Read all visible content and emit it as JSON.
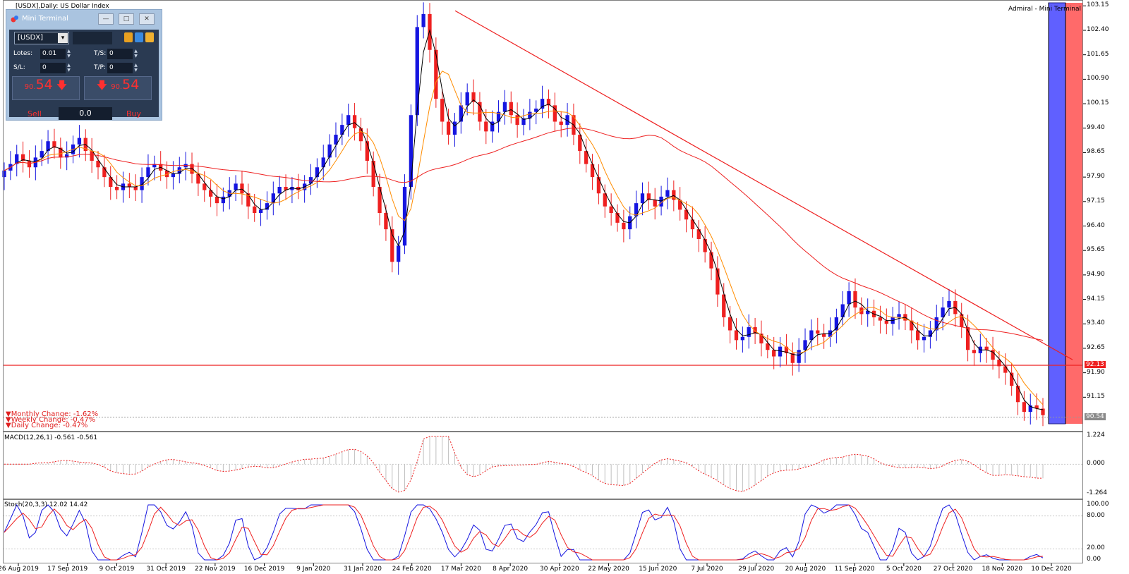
{
  "window": {
    "title": "[USDX],Daily: US Dollar Index",
    "broker": "Admiral - Mini Terminal"
  },
  "mini_terminal": {
    "title": "Mini Terminal",
    "symbol": "[USDX]",
    "lots_label": "Lotes:",
    "lots_value": "0.01",
    "ts_label": "T/S:",
    "ts_value": "0",
    "sl_label": "S/L:",
    "sl_value": "0",
    "tp_label": "T/P:",
    "tp_value": "0",
    "sell_price_small": "90.",
    "sell_price_big": "54",
    "buy_price_small": "90.",
    "buy_price_big": "54",
    "sell_label": "Sell",
    "buy_label": "Buy",
    "volume_value": "0.0",
    "minimize_icon": "minimize-icon",
    "restore_icon": "restore-icon",
    "close_icon": "close-icon"
  },
  "changes": {
    "monthly": "Monthly Change: -1.62%",
    "weekly": "Weekly Change: -0.47%",
    "daily": "Daily Change: -0.47%"
  },
  "indicators": {
    "macd_label": "MACD(12,26,1) -0.561 -0.561",
    "stoch_label": "Stoch(20,3,3) 12.02 14.42"
  },
  "colors": {
    "bull": "#1515e0",
    "bear": "#ee2020",
    "ma_fast": "#000000",
    "ma_mid": "#ff8c00",
    "ma_slow": "#ee2020",
    "trendline": "#ee2020",
    "blue_zone": "#6060ff",
    "red_zone": "#ff6a6a"
  },
  "chart_data": [
    {
      "type": "candlestick",
      "name": "USDX Daily",
      "ylim": [
        90.4,
        103.2
      ],
      "y_ticks": [
        "103.15",
        "102.40",
        "101.65",
        "100.90",
        "100.15",
        "99.40",
        "98.65",
        "97.90",
        "97.15",
        "96.40",
        "95.65",
        "94.90",
        "94.15",
        "93.40",
        "92.65",
        "91.90",
        "91.15"
      ],
      "x_ticks": [
        "26 Aug 2019",
        "17 Sep 2019",
        "9 Oct 2019",
        "31 Oct 2019",
        "22 Nov 2019",
        "16 Dec 2019",
        "9 Jan 2020",
        "31 Jan 2020",
        "24 Feb 2020",
        "17 Mar 2020",
        "8 Apr 2020",
        "30 Apr 2020",
        "22 May 2020",
        "15 Jun 2020",
        "7 Jul 2020",
        "29 Jul 2020",
        "20 Aug 2020",
        "11 Sep 2020",
        "5 Oct 2020",
        "27 Oct 2020",
        "18 Nov 2020",
        "10 Dec 2020"
      ],
      "close_series": [
        98.1,
        98.3,
        98.6,
        98.4,
        98.2,
        98.5,
        98.7,
        99.0,
        98.8,
        98.5,
        98.6,
        98.9,
        99.1,
        98.7,
        98.4,
        98.2,
        97.9,
        97.6,
        97.5,
        97.7,
        97.6,
        97.5,
        97.9,
        98.2,
        98.3,
        98.1,
        97.9,
        98.0,
        98.2,
        98.3,
        98.0,
        97.7,
        97.5,
        97.3,
        97.1,
        97.3,
        97.5,
        97.7,
        97.4,
        97.0,
        96.8,
        96.9,
        97.1,
        97.4,
        97.6,
        97.5,
        97.6,
        97.5,
        97.7,
        97.9,
        98.2,
        98.5,
        98.9,
        99.2,
        99.5,
        99.8,
        99.4,
        99.0,
        98.4,
        97.6,
        96.8,
        96.3,
        95.3,
        95.8,
        97.6,
        99.8,
        102.5,
        102.9,
        101.8,
        100.3,
        99.6,
        99.2,
        99.6,
        100.1,
        100.5,
        100.2,
        99.6,
        99.3,
        99.6,
        99.9,
        100.2,
        99.8,
        99.5,
        99.7,
        99.9,
        100.0,
        100.3,
        100.1,
        99.6,
        99.5,
        99.8,
        99.2,
        98.7,
        98.3,
        97.9,
        97.4,
        97.0,
        96.8,
        96.5,
        96.3,
        96.7,
        97.1,
        97.4,
        97.2,
        97.0,
        97.3,
        97.5,
        97.2,
        96.9,
        96.6,
        96.3,
        96.0,
        95.6,
        95.1,
        94.3,
        93.6,
        93.2,
        92.9,
        93.0,
        93.3,
        93.1,
        92.8,
        92.6,
        92.4,
        92.7,
        92.5,
        92.2,
        92.6,
        92.9,
        93.2,
        93.1,
        93.0,
        93.2,
        93.6,
        94.0,
        94.4,
        93.9,
        93.7,
        93.8,
        93.6,
        93.5,
        93.4,
        93.6,
        93.7,
        93.5,
        93.2,
        92.9,
        93.0,
        93.2,
        93.6,
        93.9,
        94.1,
        93.7,
        93.3,
        92.6,
        92.5,
        92.7,
        92.6,
        92.3,
        92.1,
        91.9,
        91.5,
        91.0,
        90.7,
        90.9,
        90.8,
        90.6
      ],
      "horizontal_level": 92.13,
      "current_price": 90.54,
      "overlays": [
        "ma_fast (black)",
        "ma_mid (orange)",
        "ma_slow (red)",
        "descending trendline (red)"
      ]
    },
    {
      "type": "bar",
      "name": "MACD(12,26,1)",
      "ylim": [
        -1.264,
        1.224
      ],
      "y_ticks": [
        "1.224",
        "0.000",
        "-1.264"
      ],
      "values_note": "histogram + signal, last value -0.561"
    },
    {
      "type": "line",
      "name": "Stoch(20,3,3)",
      "ylim": [
        0,
        100
      ],
      "y_ticks": [
        "100.00",
        "80.00",
        "20.00",
        "0.00"
      ],
      "last_main": 12.02,
      "last_signal": 14.42
    }
  ]
}
